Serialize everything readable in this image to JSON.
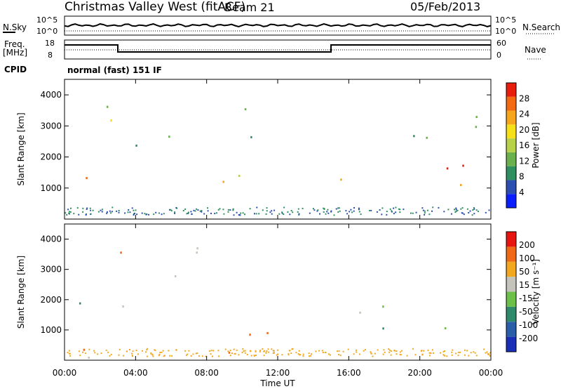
{
  "header": {
    "title": "Christmas Valley West (fitACF)",
    "beam": "Beam 21",
    "date": "05/Feb/2013"
  },
  "aux": {
    "nsky_label": "N.Sky",
    "nsky_ticks": [
      "10^5",
      "10^0"
    ],
    "nsearch_label": "N.Search",
    "nsearch_ticks": [
      "10^5",
      "10^0"
    ],
    "freq_label": "Freq.",
    "freq_unit": "[MHz]",
    "freq_ticks": [
      "18",
      "8"
    ],
    "nave_label": "Nave",
    "nave_ticks": [
      "60",
      "0"
    ],
    "cpid_label": "CPID",
    "cpid_value": "normal (fast) 151 IF"
  },
  "chart_data": [
    {
      "type": "heatmap",
      "name": "power",
      "ylabel": "Slant Range [km]",
      "yticks": [
        "1000",
        "2000",
        "3000",
        "4000"
      ],
      "ylim": [
        0,
        4500
      ],
      "colorbar_label": "Power [dB]",
      "colorbar_ticks": [
        "28",
        "24",
        "20",
        "16",
        "12",
        "8",
        "4"
      ],
      "colors": [
        "#0a1fff",
        "#2a4fb0",
        "#2f8f5e",
        "#6ab04c",
        "#b7d24a",
        "#f7e018",
        "#f7a51a",
        "#f36a13",
        "#e81d0e"
      ],
      "bands": [
        {
          "x0": 0.0,
          "x1": 2.0,
          "y0": 1100,
          "y1": 1950,
          "level": 0.85
        },
        {
          "x0": 0.8,
          "x1": 2.6,
          "y0": 2000,
          "y1": 3800,
          "level": 0.55
        },
        {
          "x0": 2.8,
          "x1": 4.0,
          "y0": 2000,
          "y1": 3900,
          "level": 0.35
        },
        {
          "x0": 5.7,
          "x1": 10.5,
          "y0": 2600,
          "y1": 3800,
          "level": 0.3
        },
        {
          "x0": 8.5,
          "x1": 14.8,
          "y0": 800,
          "y1": 1500,
          "level": 0.7
        },
        {
          "x0": 15.2,
          "x1": 24.0,
          "y0": 1000,
          "y1": 1900,
          "level": 0.85
        },
        {
          "x0": 16.0,
          "x1": 21.5,
          "y0": 2400,
          "y1": 3200,
          "level": 0.3
        },
        {
          "x0": 22.0,
          "x1": 24.0,
          "y0": 2700,
          "y1": 4200,
          "level": 0.45
        }
      ],
      "xticks": [
        "00:00",
        "04:00",
        "08:00",
        "12:00",
        "16:00",
        "20:00",
        "00:00"
      ],
      "xlim": [
        0,
        24
      ]
    },
    {
      "type": "heatmap",
      "name": "velocity",
      "ylabel": "Slant Range [km]",
      "yticks": [
        "1000",
        "2000",
        "3000",
        "4000"
      ],
      "ylim": [
        0,
        4500
      ],
      "xlabel": "Time UT",
      "xticks": [
        "00:00",
        "04:00",
        "08:00",
        "12:00",
        "16:00",
        "20:00",
        "00:00"
      ],
      "xlim": [
        0,
        24
      ],
      "colorbar_label": "Velocity [m s⁻¹]",
      "colorbar_ticks": [
        "200",
        "100",
        "50",
        "15",
        "-15",
        "-50",
        "-100",
        "-200"
      ],
      "colors": [
        "#1a2fb8",
        "#2b5ea8",
        "#2e8a6b",
        "#6cc04a",
        "#c4c4bc",
        "#f2a81e",
        "#f06a16",
        "#e8140f"
      ],
      "bands": [
        {
          "x0": 0.0,
          "x1": 4.0,
          "y0": 1200,
          "y1": 1950,
          "level": 0.5
        },
        {
          "x0": 1.0,
          "x1": 3.5,
          "y0": 3000,
          "y1": 3800,
          "level": 0.9
        },
        {
          "x0": 5.5,
          "x1": 10.5,
          "y0": 2600,
          "y1": 3800,
          "level": 0.5
        },
        {
          "x0": 8.5,
          "x1": 14.8,
          "y0": 800,
          "y1": 1500,
          "level": 0.65
        },
        {
          "x0": 15.2,
          "x1": 24.0,
          "y0": 1000,
          "y1": 1900,
          "level": 0.5
        },
        {
          "x0": 0.0,
          "x1": 24.0,
          "y0": 100,
          "y1": 400,
          "level": 0.65
        }
      ]
    }
  ]
}
